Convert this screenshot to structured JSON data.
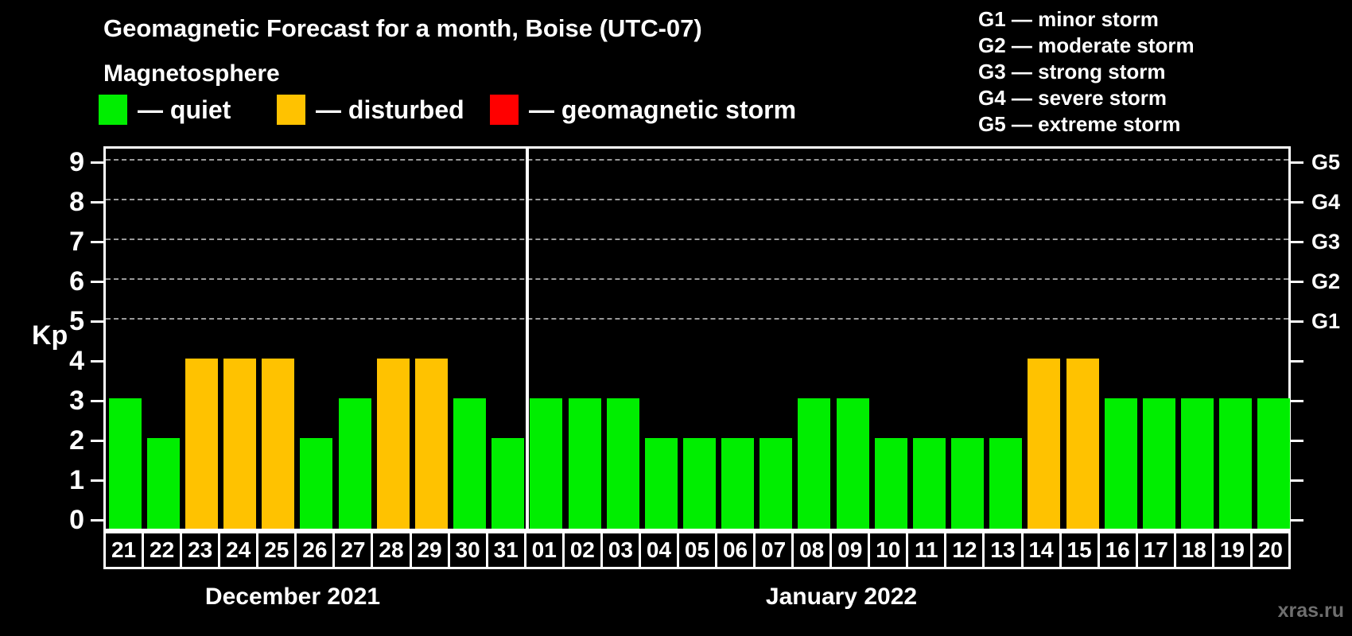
{
  "header": {
    "title": "Geomagnetic Forecast for a month, Boise (UTC-07)",
    "subtitle": "Magnetosphere"
  },
  "status_legend": {
    "items": [
      {
        "name": "quiet",
        "label": "— quiet",
        "color": "#00ee00"
      },
      {
        "name": "disturbed",
        "label": "— disturbed",
        "color": "#ffc200"
      },
      {
        "name": "storm",
        "label": "— geomagnetic storm",
        "color": "#ff0000"
      }
    ]
  },
  "storm_scale_legend": {
    "items": [
      "G1 — minor storm",
      "G2 — moderate storm",
      "G3 — strong storm",
      "G4 — severe storm",
      "G5 — extreme storm"
    ]
  },
  "watermark": "xras.ru",
  "chart_data": {
    "type": "bar",
    "title": "Geomagnetic Forecast for a month, Boise (UTC-07)",
    "ylabel": "Kp",
    "ylim": [
      0,
      9
    ],
    "y_ticks": [
      0,
      1,
      2,
      3,
      4,
      5,
      6,
      7,
      8,
      9
    ],
    "right_axis_ticks": [
      {
        "kp": 5,
        "label": "G1"
      },
      {
        "kp": 6,
        "label": "G2"
      },
      {
        "kp": 7,
        "label": "G3"
      },
      {
        "kp": 8,
        "label": "G4"
      },
      {
        "kp": 9,
        "label": "G5"
      }
    ],
    "gridlines_at": [
      5,
      6,
      7,
      8,
      9
    ],
    "grid": "horizontal dashed at storm levels G1-G5",
    "legend_position": "top",
    "status_colors": {
      "quiet": "#00ee00",
      "disturbed": "#ffc200",
      "storm": "#ff0000"
    },
    "months": [
      {
        "label": "December 2021",
        "start_index": 0,
        "days": 11
      },
      {
        "label": "January 2022",
        "start_index": 11,
        "days": 20
      }
    ],
    "days": [
      {
        "day": "21",
        "kp": 3,
        "status": "quiet"
      },
      {
        "day": "22",
        "kp": 2,
        "status": "quiet"
      },
      {
        "day": "23",
        "kp": 4,
        "status": "disturbed"
      },
      {
        "day": "24",
        "kp": 4,
        "status": "disturbed"
      },
      {
        "day": "25",
        "kp": 4,
        "status": "disturbed"
      },
      {
        "day": "26",
        "kp": 2,
        "status": "quiet"
      },
      {
        "day": "27",
        "kp": 3,
        "status": "quiet"
      },
      {
        "day": "28",
        "kp": 4,
        "status": "disturbed"
      },
      {
        "day": "29",
        "kp": 4,
        "status": "disturbed"
      },
      {
        "day": "30",
        "kp": 3,
        "status": "quiet"
      },
      {
        "day": "31",
        "kp": 2,
        "status": "quiet"
      },
      {
        "day": "01",
        "kp": 3,
        "status": "quiet"
      },
      {
        "day": "02",
        "kp": 3,
        "status": "quiet"
      },
      {
        "day": "03",
        "kp": 3,
        "status": "quiet"
      },
      {
        "day": "04",
        "kp": 2,
        "status": "quiet"
      },
      {
        "day": "05",
        "kp": 2,
        "status": "quiet"
      },
      {
        "day": "06",
        "kp": 2,
        "status": "quiet"
      },
      {
        "day": "07",
        "kp": 2,
        "status": "quiet"
      },
      {
        "day": "08",
        "kp": 3,
        "status": "quiet"
      },
      {
        "day": "09",
        "kp": 3,
        "status": "quiet"
      },
      {
        "day": "10",
        "kp": 2,
        "status": "quiet"
      },
      {
        "day": "11",
        "kp": 2,
        "status": "quiet"
      },
      {
        "day": "12",
        "kp": 2,
        "status": "quiet"
      },
      {
        "day": "13",
        "kp": 2,
        "status": "quiet"
      },
      {
        "day": "14",
        "kp": 4,
        "status": "disturbed"
      },
      {
        "day": "15",
        "kp": 4,
        "status": "disturbed"
      },
      {
        "day": "16",
        "kp": 3,
        "status": "quiet"
      },
      {
        "day": "17",
        "kp": 3,
        "status": "quiet"
      },
      {
        "day": "18",
        "kp": 3,
        "status": "quiet"
      },
      {
        "day": "19",
        "kp": 3,
        "status": "quiet"
      },
      {
        "day": "20",
        "kp": 3,
        "status": "quiet"
      }
    ]
  }
}
